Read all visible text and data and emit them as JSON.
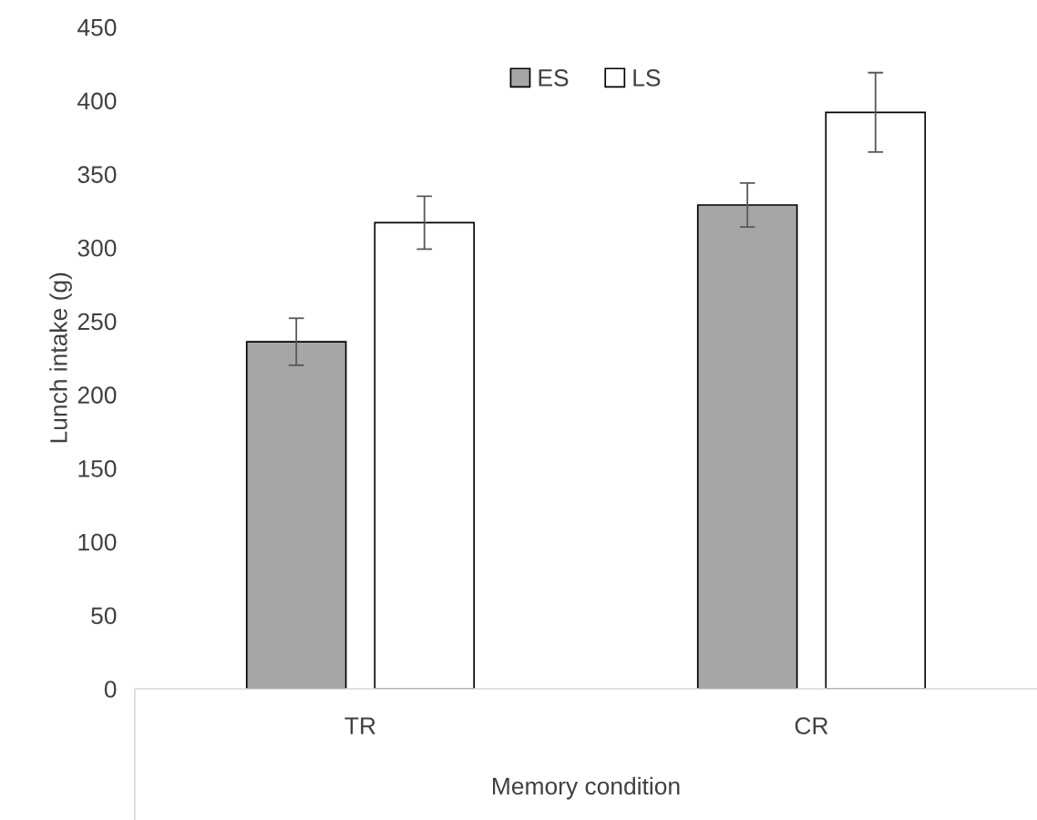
{
  "chart_data": {
    "type": "bar",
    "xlabel": "Memory condition",
    "ylabel": "Lunch intake (g)",
    "categories": [
      "TR",
      "CR"
    ],
    "series": [
      {
        "name": "ES",
        "color": "#a6a6a6",
        "values": [
          236,
          329
        ],
        "errors": [
          16,
          15
        ]
      },
      {
        "name": "LS",
        "color": "#ffffff",
        "values": [
          317,
          392
        ],
        "errors": [
          18,
          27
        ]
      }
    ],
    "ylim": [
      0,
      450
    ],
    "yticks": [
      0,
      50,
      100,
      150,
      200,
      250,
      300,
      350,
      400,
      450
    ],
    "grid": false,
    "legend": "top"
  }
}
